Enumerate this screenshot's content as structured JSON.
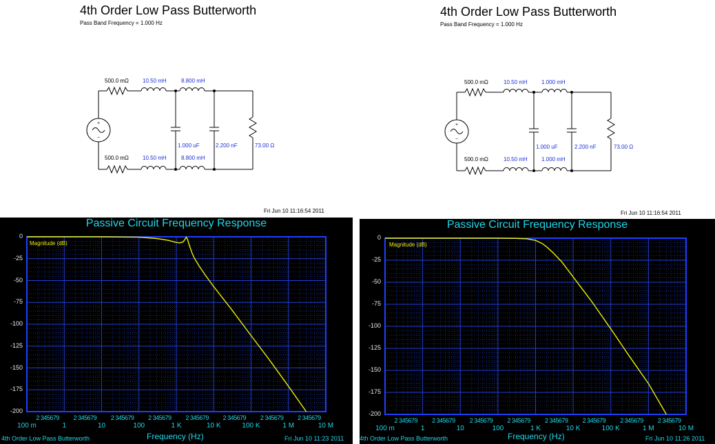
{
  "panels": [
    {
      "schematic": {
        "title": "4th Order Low Pass Butterworth",
        "subtitle": "Pass Band Frequency = 1.000 Hz",
        "r_top": "500.0 mΩ",
        "l1_top": "10.50 mH",
        "l2_top": "8.800 mH",
        "r_bot": "500.0 mΩ",
        "l1_bot": "10.50 mH",
        "l2_bot": "8.800 mH",
        "c1": "1.000 uF",
        "c2": "2.200 nF",
        "r_load": "73.00 Ω"
      },
      "timestamp": "Fri Jun 10 11:16:54 2011",
      "plot": {
        "title": "Passive Circuit Frequency Response",
        "series_label": "Magnitude (dB)",
        "x_axis_label": "Frequency (Hz)",
        "footer_left": "4th Order Low Pass Butterworth",
        "footer_right": "Fri Jun 10 11:23 2011"
      }
    },
    {
      "schematic": {
        "title": "4th Order Low Pass Butterworth",
        "subtitle": "Pass Band Frequency = 1.000 Hz",
        "r_top": "500.0 mΩ",
        "l1_top": "10.50 mH",
        "l2_top": "1.000 mH",
        "r_bot": "500.0 mΩ",
        "l1_bot": "10.50 mH",
        "l2_bot": "1.000 mH",
        "c1": "1.000 uF",
        "c2": "2.200 nF",
        "r_load": "73.00 Ω"
      },
      "timestamp": "Fri Jun 10 11:16:54 2011",
      "plot": {
        "title": "Passive Circuit Frequency Response",
        "series_label": "Magnitude (dB)",
        "x_axis_label": "Frequency (Hz)",
        "footer_left": "4th Order Low Pass Butterworth",
        "footer_right": "Fri Jun 10 11:26 2011"
      }
    }
  ],
  "chart_data": [
    {
      "type": "line",
      "title": "Passive Circuit Frequency Response",
      "xlabel": "Frequency (Hz)",
      "ylabel": "",
      "x_scale": "log",
      "xlim": [
        0.1,
        10000000
      ],
      "ylim": [
        -200,
        0
      ],
      "yticks": [
        0,
        -25,
        -50,
        -75,
        -100,
        -125,
        -150,
        -175,
        -200
      ],
      "xticks": [
        "100 m",
        "1",
        "10",
        "100",
        "1 K",
        "10 K",
        "100 K",
        "1 M",
        "10 M"
      ],
      "minor_tick_labels": "2 345679",
      "grid": true,
      "series": [
        {
          "name": "Magnitude (dB)",
          "color": "#f0f000",
          "x": [
            0.1,
            10,
            100,
            300,
            600,
            900,
            1200,
            1500,
            1700,
            1850,
            2000,
            2200,
            2600,
            3000,
            4000,
            6000,
            10000,
            30000,
            100000,
            300000,
            1000000,
            3000000
          ],
          "y": [
            0,
            0,
            -0.5,
            -2,
            -4,
            -6,
            -7,
            -6,
            -3,
            -0.5,
            -3,
            -9,
            -18,
            -24,
            -33,
            -44,
            -57,
            -83,
            -113,
            -140,
            -171,
            -200
          ]
        }
      ]
    },
    {
      "type": "line",
      "title": "Passive Circuit Frequency Response",
      "xlabel": "Frequency (Hz)",
      "ylabel": "",
      "x_scale": "log",
      "xlim": [
        0.1,
        10000000
      ],
      "ylim": [
        -200,
        0
      ],
      "yticks": [
        0,
        -25,
        -50,
        -75,
        -100,
        -125,
        -150,
        -175,
        -200
      ],
      "xticks": [
        "100 m",
        "1",
        "10",
        "100",
        "1 K",
        "10 K",
        "100 K",
        "1 M",
        "10 M"
      ],
      "minor_tick_labels": "2 345679",
      "grid": true,
      "series": [
        {
          "name": "Magnitude (dB)",
          "color": "#f0f000",
          "x": [
            0.1,
            100,
            300,
            600,
            1000,
            1500,
            2000,
            3000,
            5000,
            10000,
            30000,
            100000,
            300000,
            1000000,
            3000000
          ],
          "y": [
            0,
            0,
            -0.2,
            -0.8,
            -2.5,
            -6,
            -10,
            -17,
            -27,
            -44,
            -71,
            -103,
            -133,
            -165,
            -200
          ]
        }
      ]
    }
  ]
}
